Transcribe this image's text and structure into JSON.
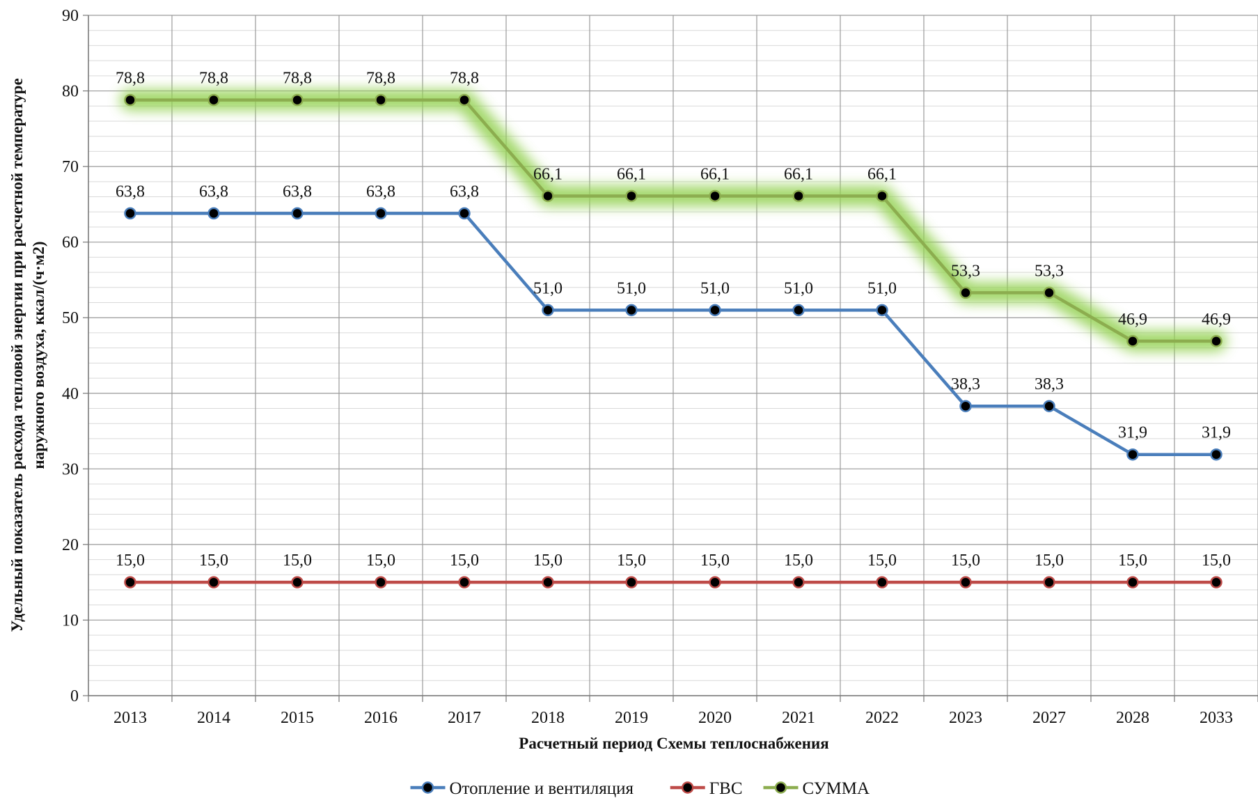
{
  "chart_data": {
    "type": "line",
    "title": "",
    "xlabel": "Расчетный период Схемы теплоснабжения",
    "ylabel_lines": [
      "Удельный показатель расхода тепловой энергии при расчетной температуре",
      "наружного воздуха, ккал/(ч·м2)"
    ],
    "ylim": [
      0,
      90
    ],
    "y_major_step": 10,
    "y_minor_step": 2,
    "grid": true,
    "legend_position": "bottom",
    "categories": [
      "2013",
      "2014",
      "2015",
      "2016",
      "2017",
      "2018",
      "2019",
      "2020",
      "2021",
      "2022",
      "2023",
      "2027",
      "2028",
      "2033"
    ],
    "series": [
      {
        "name": "Отопление и вентиляция",
        "color": "#4a7ebb",
        "values": [
          63.8,
          63.8,
          63.8,
          63.8,
          63.8,
          51.0,
          51.0,
          51.0,
          51.0,
          51.0,
          38.3,
          38.3,
          31.9,
          31.9
        ],
        "labels": [
          "63,8",
          "63,8",
          "63,8",
          "63,8",
          "63,8",
          "51,0",
          "51,0",
          "51,0",
          "51,0",
          "51,0",
          "38,3",
          "38,3",
          "31,9",
          "31,9"
        ],
        "glow": false
      },
      {
        "name": "ГВС",
        "color": "#be4b48",
        "values": [
          15.0,
          15.0,
          15.0,
          15.0,
          15.0,
          15.0,
          15.0,
          15.0,
          15.0,
          15.0,
          15.0,
          15.0,
          15.0,
          15.0
        ],
        "labels": [
          "15,0",
          "15,0",
          "15,0",
          "15,0",
          "15,0",
          "15,0",
          "15,0",
          "15,0",
          "15,0",
          "15,0",
          "15,0",
          "15,0",
          "15,0",
          "15,0"
        ],
        "glow": false
      },
      {
        "name": "СУММА",
        "color": "#8cad4f",
        "glow_color": "#92d050",
        "values": [
          78.8,
          78.8,
          78.8,
          78.8,
          78.8,
          66.1,
          66.1,
          66.1,
          66.1,
          66.1,
          53.3,
          53.3,
          46.9,
          46.9
        ],
        "labels": [
          "78,8",
          "78,8",
          "78,8",
          "78,8",
          "78,8",
          "66,1",
          "66,1",
          "66,1",
          "66,1",
          "66,1",
          "53,3",
          "53,3",
          "46,9",
          "46,9"
        ],
        "glow": true
      }
    ],
    "marker_color": "#000000"
  }
}
